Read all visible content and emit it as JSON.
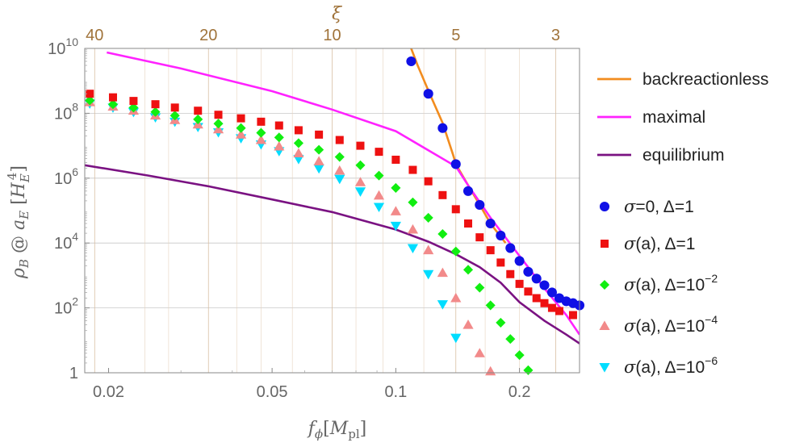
{
  "chart_data": {
    "type": "scatter",
    "title": "",
    "xlabel": "f_φ [M_pl]",
    "xlabel_main": "f",
    "xlabel_sub": "ϕ",
    "xlabel_unit_open": "[",
    "xlabel_unit": "M",
    "xlabel_unit_sub": "pl",
    "xlabel_unit_close": "]",
    "ylabel": "ρ_B @ a_E [H_E^4]",
    "ylabel_main": "ρ",
    "ylabel_sub": "B",
    "ylabel_at": " @ ",
    "ylabel_a": "a",
    "ylabel_a_sub": "E",
    "ylabel_open": " [",
    "ylabel_H": "H",
    "ylabel_H_sub": "E",
    "ylabel_H_sup": "4",
    "ylabel_close": "]",
    "top_axis_label": "ξ",
    "x_scale": "log",
    "y_scale": "log",
    "xlim": [
      0.0175,
      0.28
    ],
    "ylim": [
      1,
      10000000000.0
    ],
    "x_ticks": [
      {
        "value": 0.02,
        "label": "0.02"
      },
      {
        "value": 0.05,
        "label": "0.05"
      },
      {
        "value": 0.1,
        "label": "0.1"
      },
      {
        "value": 0.2,
        "label": "0.2"
      }
    ],
    "y_ticks": [
      {
        "value": 1,
        "base": "1",
        "exp": ""
      },
      {
        "value": 100,
        "base": "10",
        "exp": "2"
      },
      {
        "value": 10000,
        "base": "10",
        "exp": "4"
      },
      {
        "value": 1000000,
        "base": "10",
        "exp": "6"
      },
      {
        "value": 100000000,
        "base": "10",
        "exp": "8"
      },
      {
        "value": 10000000000,
        "base": "10",
        "exp": "10"
      }
    ],
    "top_ticks": [
      {
        "x": 0.0185,
        "label": "40"
      },
      {
        "x": 0.035,
        "label": "20"
      },
      {
        "x": 0.07,
        "label": "10"
      },
      {
        "x": 0.14,
        "label": "5"
      },
      {
        "x": 0.245,
        "label": "3"
      }
    ],
    "grid": true,
    "legend_position": "right",
    "lines": [
      {
        "name": "backreactionless",
        "color": "#f28c1e",
        "points": [
          [
            0.109,
            10000000000.0
          ],
          [
            0.113,
            3000000000.0
          ],
          [
            0.12,
            500000000.0
          ],
          [
            0.13,
            50000000.0
          ],
          [
            0.138,
            5000000.0
          ],
          [
            0.14,
            2700000.0
          ],
          [
            0.15,
            600000.0
          ],
          [
            0.16,
            150000.0
          ],
          [
            0.17,
            40000.0
          ],
          [
            0.185,
            10000.0
          ]
        ]
      },
      {
        "name": "maximal",
        "color": "#ff22ff",
        "points": [
          [
            0.0198,
            7500000000.0
          ],
          [
            0.03,
            2400000000.0
          ],
          [
            0.05,
            480000000.0
          ],
          [
            0.07,
            130000000.0
          ],
          [
            0.1,
            28000000.0
          ],
          [
            0.14,
            2300000.0
          ],
          [
            0.15,
            600000.0
          ],
          [
            0.17,
            60000.0
          ],
          [
            0.2,
            4000.0
          ],
          [
            0.23,
            400.0
          ],
          [
            0.26,
            60.0
          ],
          [
            0.28,
            15.0
          ]
        ]
      },
      {
        "name": "equilibrium",
        "color": "#7a1282",
        "points": [
          [
            0.0175,
            2500000.0
          ],
          [
            0.025,
            1200000.0
          ],
          [
            0.035,
            560000.0
          ],
          [
            0.05,
            220000.0
          ],
          [
            0.07,
            90000.0
          ],
          [
            0.1,
            26000.0
          ],
          [
            0.12,
            11000.0
          ],
          [
            0.14,
            4500.0
          ],
          [
            0.16,
            1800.0
          ],
          [
            0.18,
            600.0
          ],
          [
            0.2,
            150.0
          ],
          [
            0.23,
            40.0
          ],
          [
            0.26,
            15.0
          ],
          [
            0.28,
            8.0
          ]
        ]
      }
    ],
    "series": [
      {
        "name": "σ=0, Δ=1",
        "color": "#1010e6",
        "marker": "circle",
        "points": [
          [
            0.109,
            4000000000.0
          ],
          [
            0.12,
            400000000.0
          ],
          [
            0.13,
            35000000.0
          ],
          [
            0.14,
            2700000.0
          ],
          [
            0.15,
            400000.0
          ],
          [
            0.16,
            150000.0
          ],
          [
            0.17,
            40000.0
          ],
          [
            0.18,
            17000.0
          ],
          [
            0.19,
            7000.0
          ],
          [
            0.2,
            2800.0
          ],
          [
            0.21,
            1300.0
          ],
          [
            0.22,
            800.0
          ],
          [
            0.23,
            500.0
          ],
          [
            0.24,
            300.0
          ],
          [
            0.25,
            200.0
          ],
          [
            0.26,
            160.0
          ],
          [
            0.27,
            140.0
          ],
          [
            0.28,
            120.0
          ]
        ]
      },
      {
        "name": "σ(a), Δ=1",
        "color": "#ee1111",
        "marker": "square",
        "points": [
          [
            0.018,
            400000000.0
          ],
          [
            0.0205,
            310000000.0
          ],
          [
            0.023,
            240000000.0
          ],
          [
            0.026,
            190000000.0
          ],
          [
            0.029,
            150000000.0
          ],
          [
            0.033,
            120000000.0
          ],
          [
            0.037,
            90000000.0
          ],
          [
            0.042,
            70000000.0
          ],
          [
            0.047,
            55000000.0
          ],
          [
            0.052,
            42000000.0
          ],
          [
            0.058,
            30000000.0
          ],
          [
            0.065,
            22000000.0
          ],
          [
            0.073,
            15000000.0
          ],
          [
            0.082,
            10000000.0
          ],
          [
            0.091,
            6500000.0
          ],
          [
            0.1,
            3700000.0
          ],
          [
            0.11,
            1800000.0
          ],
          [
            0.12,
            800000.0
          ],
          [
            0.13,
            300000.0
          ],
          [
            0.14,
            110000.0
          ],
          [
            0.15,
            40000.0
          ],
          [
            0.16,
            15000.0
          ],
          [
            0.17,
            6000.0
          ],
          [
            0.18,
            2500.0
          ],
          [
            0.19,
            1100.0
          ],
          [
            0.2,
            550.0
          ],
          [
            0.21,
            320.0
          ],
          [
            0.22,
            200.0
          ],
          [
            0.23,
            140.0
          ],
          [
            0.24,
            100.0
          ],
          [
            0.25,
            80.0
          ],
          [
            0.27,
            60.0
          ]
        ]
      },
      {
        "name": "σ(a), Δ=10^−2",
        "color": "#11ee11",
        "marker": "diamond",
        "points": [
          [
            0.018,
            250000000.0
          ],
          [
            0.0205,
            190000000.0
          ],
          [
            0.023,
            150000000.0
          ],
          [
            0.026,
            110000000.0
          ],
          [
            0.029,
            85000000.0
          ],
          [
            0.033,
            65000000.0
          ],
          [
            0.037,
            48000000.0
          ],
          [
            0.042,
            35000000.0
          ],
          [
            0.047,
            25000000.0
          ],
          [
            0.052,
            18000000.0
          ],
          [
            0.058,
            12000000.0
          ],
          [
            0.065,
            7500000.0
          ],
          [
            0.073,
            4500000.0
          ],
          [
            0.082,
            2500000.0
          ],
          [
            0.091,
            1200000.0
          ],
          [
            0.1,
            500000.0
          ],
          [
            0.11,
            180000.0
          ],
          [
            0.12,
            60000.0
          ],
          [
            0.13,
            19000.0
          ],
          [
            0.14,
            5500.0
          ],
          [
            0.15,
            1500.0
          ],
          [
            0.16,
            420.0
          ],
          [
            0.17,
            120.0
          ],
          [
            0.18,
            35.0
          ],
          [
            0.19,
            11.0
          ],
          [
            0.2,
            3.5
          ],
          [
            0.21,
            1.2
          ]
        ]
      },
      {
        "name": "σ(a), Δ=10^−4",
        "color": "#f28a8a",
        "marker": "triangle-up",
        "points": [
          [
            0.018,
            220000000.0
          ],
          [
            0.0205,
            160000000.0
          ],
          [
            0.023,
            120000000.0
          ],
          [
            0.026,
            85000000.0
          ],
          [
            0.029,
            62000000.0
          ],
          [
            0.033,
            45000000.0
          ],
          [
            0.037,
            32000000.0
          ],
          [
            0.042,
            22000000.0
          ],
          [
            0.047,
            15000000.0
          ],
          [
            0.052,
            9500000.0
          ],
          [
            0.058,
            5800000.0
          ],
          [
            0.065,
            3300000.0
          ],
          [
            0.073,
            1700000.0
          ],
          [
            0.082,
            750000.0
          ],
          [
            0.091,
            290000.0
          ],
          [
            0.1,
            95000.0
          ],
          [
            0.11,
            26000.0
          ],
          [
            0.12,
            6000.0
          ],
          [
            0.13,
            1200.0
          ],
          [
            0.14,
            200.0
          ],
          [
            0.15,
            30.0
          ],
          [
            0.16,
            4.0
          ],
          [
            0.17,
            1.1
          ]
        ]
      },
      {
        "name": "σ(a), Δ=10^−6",
        "color": "#00ddff",
        "marker": "triangle-down",
        "points": [
          [
            0.018,
            200000000.0
          ],
          [
            0.0205,
            150000000.0
          ],
          [
            0.023,
            110000000.0
          ],
          [
            0.026,
            75000000.0
          ],
          [
            0.029,
            55000000.0
          ],
          [
            0.033,
            38000000.0
          ],
          [
            0.037,
            26000000.0
          ],
          [
            0.042,
            17000000.0
          ],
          [
            0.047,
            11000000.0
          ],
          [
            0.052,
            6800000.0
          ],
          [
            0.058,
            3900000.0
          ],
          [
            0.065,
            2000000.0
          ],
          [
            0.073,
            950000.0
          ],
          [
            0.082,
            390000.0
          ],
          [
            0.091,
            130000.0
          ],
          [
            0.1,
            34000.0
          ],
          [
            0.11,
            7000.0
          ],
          [
            0.12,
            1100.0
          ],
          [
            0.13,
            130.0
          ],
          [
            0.14,
            12.0
          ]
        ]
      }
    ],
    "legend": [
      {
        "kind": "line",
        "text": "backreactionless",
        "color": "#f28c1e"
      },
      {
        "kind": "line",
        "text": "maximal",
        "color": "#ff22ff"
      },
      {
        "kind": "line",
        "text": "equilibrium",
        "color": "#7a1282"
      },
      {
        "kind": "marker",
        "marker": "circle",
        "color": "#1010e6",
        "sym": "σ",
        "pre": "=0, Δ=1",
        "exp": ""
      },
      {
        "kind": "marker",
        "marker": "square",
        "color": "#ee1111",
        "sym": "σ",
        "pre": "(a), Δ=1",
        "exp": ""
      },
      {
        "kind": "marker",
        "marker": "diamond",
        "color": "#11ee11",
        "sym": "σ",
        "pre": "(a), Δ=10",
        "exp": "−2"
      },
      {
        "kind": "marker",
        "marker": "triangle-up",
        "color": "#f28a8a",
        "sym": "σ",
        "pre": "(a), Δ=10",
        "exp": "−4"
      },
      {
        "kind": "marker",
        "marker": "triangle-down",
        "color": "#00ddff",
        "sym": "σ",
        "pre": "(a), Δ=10",
        "exp": "−6"
      }
    ]
  }
}
